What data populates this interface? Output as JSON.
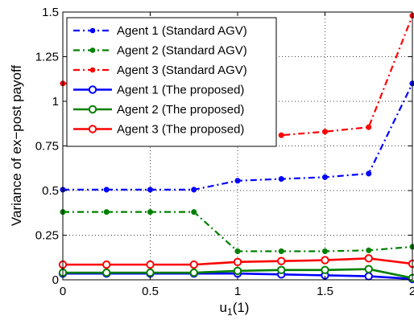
{
  "chart_data": {
    "type": "line",
    "xlabel": "u",
    "xlabel_sub": "1",
    "xlabel_suffix": "(1)",
    "ylabel": "Variance of ex−post payoff",
    "xlim": [
      0,
      2
    ],
    "ylim": [
      0,
      1.5
    ],
    "xticks": [
      0,
      0.5,
      1,
      1.5,
      2
    ],
    "xtick_labels": [
      "0",
      "0.5",
      "1",
      "1.5",
      "2"
    ],
    "yticks": [
      0,
      0.25,
      0.5,
      0.75,
      1,
      1.25,
      1.5
    ],
    "ytick_labels": [
      "0",
      "0.25",
      "0.5",
      "0.75",
      "1",
      "1.25",
      "1.5"
    ],
    "grid": true,
    "legend_position": "top-left",
    "x": [
      0,
      0.25,
      0.5,
      0.75,
      1,
      1.25,
      1.5,
      1.75,
      2
    ],
    "series": [
      {
        "name": "Agent 1 (Standard AGV)",
        "color": "#0000ff",
        "dash": "dashdot",
        "marker": "dot",
        "values": [
          0.505,
          0.505,
          0.505,
          0.505,
          0.555,
          0.565,
          0.575,
          0.595,
          1.1
        ]
      },
      {
        "name": "Agent 2 (Standard AGV)",
        "color": "#008000",
        "dash": "dashdot",
        "marker": "dot",
        "values": [
          0.38,
          0.38,
          0.38,
          0.38,
          0.16,
          0.16,
          0.16,
          0.165,
          0.185
        ]
      },
      {
        "name": "Agent 3 (Standard AGV)",
        "color": "#ff0000",
        "dash": "dashdot",
        "marker": "dot",
        "values": [
          1.1,
          1.1,
          1.1,
          1.1,
          0.8,
          0.81,
          0.83,
          0.855,
          1.48
        ]
      },
      {
        "name": "Agent 1 (The proposed)",
        "color": "#0000ff",
        "dash": "solid",
        "marker": "circle",
        "values": [
          0.035,
          0.035,
          0.035,
          0.035,
          0.035,
          0.03,
          0.025,
          0.02,
          0.005
        ]
      },
      {
        "name": "Agent 2 (The proposed)",
        "color": "#008000",
        "dash": "solid",
        "marker": "circle",
        "values": [
          0.04,
          0.04,
          0.04,
          0.04,
          0.05,
          0.055,
          0.055,
          0.06,
          0.01
        ]
      },
      {
        "name": "Agent 3 (The proposed)",
        "color": "#ff0000",
        "dash": "solid",
        "marker": "circle",
        "values": [
          0.085,
          0.085,
          0.085,
          0.085,
          0.1,
          0.105,
          0.11,
          0.12,
          0.09
        ]
      }
    ]
  }
}
